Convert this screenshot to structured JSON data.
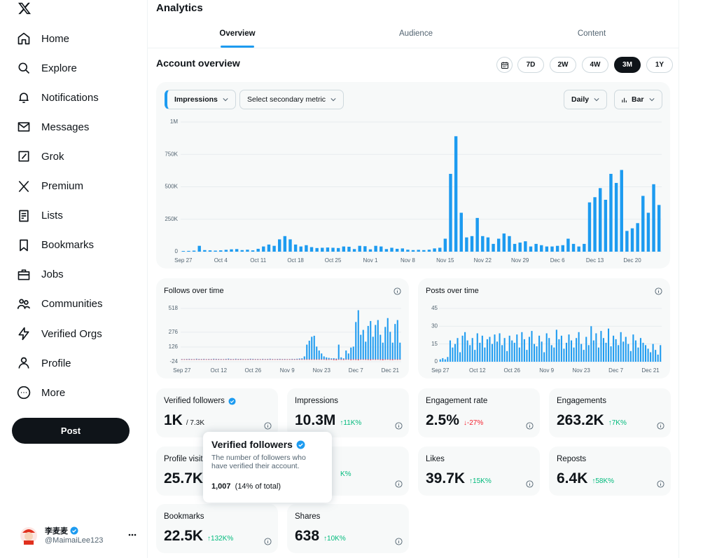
{
  "sidebar": {
    "nav": [
      "Home",
      "Explore",
      "Notifications",
      "Messages",
      "Grok",
      "Premium",
      "Lists",
      "Bookmarks",
      "Jobs",
      "Communities",
      "Verified Orgs",
      "Profile",
      "More"
    ],
    "post_button": "Post",
    "user": {
      "name": "李麦麦",
      "handle": "@MaimaiLee123",
      "verified": true
    }
  },
  "header": {
    "title": "Analytics",
    "tabs": [
      "Overview",
      "Audience",
      "Content"
    ],
    "selected_tab": 0
  },
  "account_overview": {
    "title": "Account overview",
    "ranges": [
      "7D",
      "2W",
      "4W",
      "3M",
      "1Y"
    ],
    "selected_range": 3
  },
  "controls": {
    "primary_metric": "Impressions",
    "secondary_metric": "Select secondary metric",
    "interval": "Daily",
    "chart_style": "Bar"
  },
  "chart_data": [
    {
      "type": "bar",
      "grid": true,
      "categories": [
        "Sep 27",
        null,
        null,
        null,
        null,
        null,
        null,
        "Oct 4",
        null,
        null,
        null,
        null,
        null,
        null,
        "Oct 11",
        null,
        null,
        null,
        null,
        null,
        null,
        "Oct 18",
        null,
        null,
        null,
        null,
        null,
        null,
        "Oct 25",
        null,
        null,
        null,
        null,
        null,
        null,
        "Nov 1",
        null,
        null,
        null,
        null,
        null,
        null,
        "Nov 8",
        null,
        null,
        null,
        null,
        null,
        null,
        "Nov 15",
        null,
        null,
        null,
        null,
        null,
        null,
        "Nov 22",
        null,
        null,
        null,
        null,
        null,
        null,
        "Nov 29",
        null,
        null,
        null,
        null,
        null,
        null,
        "Dec 6",
        null,
        null,
        null,
        null,
        null,
        null,
        "Dec 13",
        null,
        null,
        null,
        null,
        null,
        null,
        "Dec 20",
        null,
        null,
        null,
        null,
        null
      ],
      "series": [
        {
          "color": "#1d9bf0",
          "values": [
            5000,
            6000,
            8000,
            45000,
            12000,
            10000,
            8000,
            10000,
            14000,
            18000,
            20000,
            12000,
            15000,
            10000,
            22000,
            40000,
            55000,
            45000,
            95000,
            120000,
            95000,
            55000,
            40000,
            50000,
            35000,
            28000,
            30000,
            32000,
            30000,
            28000,
            40000,
            38000,
            20000,
            45000,
            42000,
            18000,
            45000,
            40000,
            20000,
            30000,
            22000,
            25000,
            15000,
            12000,
            14000,
            12000,
            15000,
            25000,
            30000,
            100000,
            600000,
            890000,
            300000,
            110000,
            120000,
            260000,
            120000,
            110000,
            60000,
            100000,
            140000,
            120000,
            60000,
            70000,
            80000,
            40000,
            60000,
            50000,
            40000,
            40000,
            45000,
            50000,
            100000,
            60000,
            40000,
            60000,
            380000,
            420000,
            490000,
            400000,
            600000,
            530000,
            630000,
            160000,
            180000,
            220000,
            430000,
            300000,
            520000,
            360000
          ]
        }
      ],
      "ylim": [
        0,
        1000000
      ],
      "yticks": [
        {
          "value": 0,
          "label": "0"
        },
        {
          "value": 250000,
          "label": "250K"
        },
        {
          "value": 500000,
          "label": "500K"
        },
        {
          "value": 750000,
          "label": "750K"
        },
        {
          "value": 1000000,
          "label": "1M"
        }
      ]
    },
    {
      "type": "bar",
      "title": "Follows over time",
      "grid": true,
      "categories": [
        "Sep 27",
        null,
        null,
        null,
        null,
        null,
        null,
        null,
        null,
        null,
        null,
        null,
        null,
        null,
        null,
        "Oct 12",
        null,
        null,
        null,
        null,
        null,
        null,
        null,
        null,
        null,
        null,
        null,
        null,
        null,
        "Oct 26",
        null,
        null,
        null,
        null,
        null,
        null,
        null,
        null,
        null,
        null,
        null,
        null,
        null,
        "Nov 9",
        null,
        null,
        null,
        null,
        null,
        null,
        null,
        null,
        null,
        null,
        null,
        null,
        null,
        "Nov 23",
        null,
        null,
        null,
        null,
        null,
        null,
        null,
        null,
        null,
        null,
        null,
        null,
        null,
        "Dec 7",
        null,
        null,
        null,
        null,
        null,
        null,
        null,
        null,
        null,
        null,
        null,
        null,
        null,
        "Dec 21",
        null,
        null,
        null,
        null
      ],
      "series": [
        {
          "color": "#1d9bf0",
          "values": [
            3,
            2,
            4,
            5,
            3,
            2,
            6,
            4,
            3,
            5,
            2,
            4,
            3,
            6,
            5,
            4,
            3,
            2,
            5,
            7,
            4,
            3,
            6,
            4,
            5,
            3,
            2,
            4,
            6,
            5,
            3,
            4,
            2,
            5,
            3,
            4,
            6,
            3,
            2,
            4,
            5,
            3,
            4,
            2,
            3,
            5,
            4,
            6,
            8,
            10,
            30,
            150,
            190,
            230,
            240,
            130,
            90,
            60,
            30,
            20,
            15,
            10,
            12,
            8,
            150,
            20,
            10,
            90,
            60,
            120,
            130,
            380,
            500,
            250,
            300,
            180,
            340,
            390,
            230,
            350,
            400,
            250,
            170,
            330,
            420,
            280,
            170,
            360,
            400,
            170
          ]
        },
        {
          "color": "#f4212e",
          "values": [
            -1,
            0,
            -1,
            -1,
            0,
            -1,
            0,
            -1,
            -1,
            0,
            -1,
            0,
            -1,
            -1,
            0,
            -1,
            0,
            -1,
            -1,
            0,
            -1,
            0,
            -1,
            -1,
            0,
            -1,
            0,
            -1,
            -1,
            0,
            -1,
            0,
            -1,
            -1,
            0,
            -1,
            0,
            -1,
            -1,
            0,
            -1,
            0,
            -1,
            -1,
            0,
            -1,
            0,
            -1,
            -1,
            0,
            -1,
            0,
            -1,
            -1,
            0,
            -1,
            -2,
            -3,
            -4,
            -6,
            -5,
            -3,
            -7,
            -8,
            -4,
            -5,
            -6,
            -3,
            -4,
            -7,
            -5,
            -6,
            -8,
            -4,
            -3,
            -5,
            -6,
            -7,
            -4,
            -5,
            -3,
            -6,
            -8,
            -5,
            -4,
            -6,
            -7,
            -3,
            -5,
            -4
          ]
        }
      ],
      "ylim": [
        -24,
        518
      ],
      "yticks": [
        -24,
        126,
        276,
        518
      ]
    },
    {
      "type": "bar",
      "title": "Posts over time",
      "grid": true,
      "categories": [
        "Sep 27",
        null,
        null,
        null,
        null,
        null,
        null,
        null,
        null,
        null,
        null,
        null,
        null,
        null,
        null,
        "Oct 12",
        null,
        null,
        null,
        null,
        null,
        null,
        null,
        null,
        null,
        null,
        null,
        null,
        null,
        "Oct 26",
        null,
        null,
        null,
        null,
        null,
        null,
        null,
        null,
        null,
        null,
        null,
        null,
        null,
        "Nov 9",
        null,
        null,
        null,
        null,
        null,
        null,
        null,
        null,
        null,
        null,
        null,
        null,
        null,
        "Nov 23",
        null,
        null,
        null,
        null,
        null,
        null,
        null,
        null,
        null,
        null,
        null,
        null,
        null,
        "Dec 7",
        null,
        null,
        null,
        null,
        null,
        null,
        null,
        null,
        null,
        null,
        null,
        null,
        null,
        "Dec 21",
        null,
        null,
        null,
        null
      ],
      "series": [
        {
          "color": "#1d9bf0",
          "values": [
            2,
            3,
            2,
            4,
            18,
            12,
            15,
            20,
            8,
            22,
            25,
            18,
            14,
            20,
            10,
            24,
            16,
            22,
            12,
            19,
            21,
            15,
            23,
            17,
            24,
            14,
            20,
            9,
            22,
            18,
            16,
            23,
            12,
            25,
            19,
            10,
            21,
            26,
            15,
            13,
            22,
            17,
            8,
            24,
            20,
            14,
            12,
            27,
            19,
            22,
            11,
            16,
            23,
            18,
            12,
            20,
            25,
            15,
            10,
            21,
            14,
            30,
            18,
            24,
            12,
            26,
            20,
            16,
            28,
            13,
            22,
            19,
            14,
            25,
            17,
            21,
            15,
            9,
            23,
            18,
            12,
            20,
            16,
            14,
            11,
            8,
            15,
            10,
            6,
            14
          ]
        }
      ],
      "ylim": [
        0,
        45
      ],
      "yticks": [
        0,
        15,
        30,
        45
      ]
    }
  ],
  "metrics": [
    {
      "label": "Verified followers",
      "verified": true,
      "value": "1K",
      "total": "/ 7.3K"
    },
    {
      "label": "Impressions",
      "value": "10.3M",
      "change": "↑11K%",
      "direction": "up"
    },
    {
      "label": "Engagement rate",
      "value": "2.5%",
      "change": "↓-27%",
      "direction": "down"
    },
    {
      "label": "Engagements",
      "value": "263.2K",
      "change": "↑7K%",
      "direction": "up"
    },
    {
      "label": "Profile visits",
      "value": "25.7K"
    },
    {
      "change": "K%",
      "direction": "up"
    },
    {
      "label": "Likes",
      "value": "39.7K",
      "change": "↑15K%",
      "direction": "up"
    },
    {
      "label": "Reposts",
      "value": "6.4K",
      "change": "↑58K%",
      "direction": "up"
    },
    {
      "label": "Bookmarks",
      "value": "22.5K",
      "change": "↑132K%",
      "direction": "up"
    },
    {
      "label": "Shares",
      "value": "638",
      "change": "↑10K%",
      "direction": "up"
    }
  ],
  "tooltip": {
    "title": "Verified followers",
    "description": "The number of followers who have verified their account.",
    "count": "1,007",
    "share": "(14% of total)"
  }
}
